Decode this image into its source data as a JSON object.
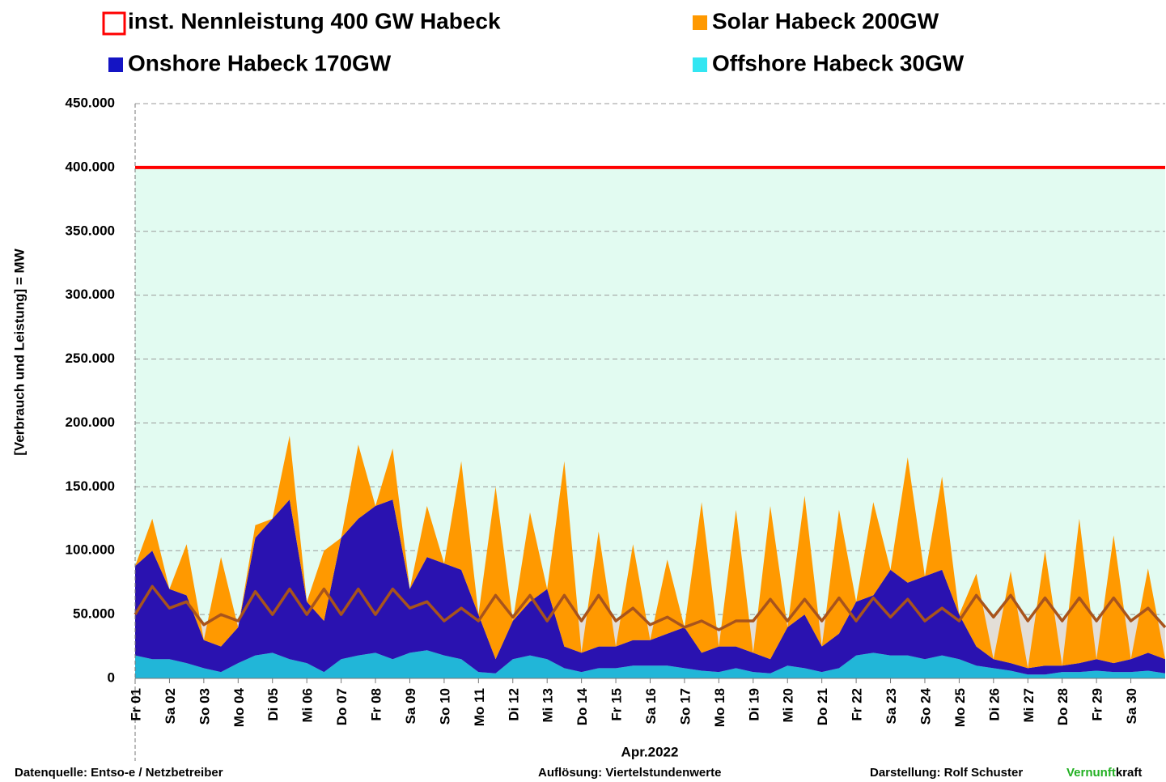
{
  "chart_data": {
    "type": "stacked-area",
    "capacity": {
      "name": "inst. Nennleistung 400 GW Habeck",
      "value": 400000,
      "color": "#ff0000",
      "fill": "#e2fbf1"
    },
    "y_label": "[Verbrauch und Leistung] = MW",
    "x_label": "Apr.2022",
    "categories": [
      "Fr 01",
      null,
      "Sa 02",
      null,
      "So 03",
      null,
      "Mo 04",
      null,
      "Di 05",
      null,
      "Mi 06",
      null,
      "Do 07",
      null,
      "Fr 08",
      null,
      "Sa 09",
      null,
      "So 10",
      null,
      "Mo 11",
      null,
      "Di 12",
      null,
      "Mi 13",
      null,
      "Do 14",
      null,
      "Fr 15",
      null,
      "Sa 16",
      null,
      "So 17",
      null,
      "Mo 18",
      null,
      "Di 19",
      null,
      "Mi 20",
      null,
      "Do 21",
      null,
      "Fr 22",
      null,
      "Sa 23",
      null,
      "So 24",
      null,
      "Mo 25",
      null,
      "Di 26",
      null,
      "Mi 27",
      null,
      "Do 28",
      null,
      "Fr 29",
      null,
      "Sa 30",
      null,
      null
    ],
    "series": [
      {
        "name": "Offshore Habeck 30GW",
        "color": "#21b6d8",
        "legend_color": "#33e6f2",
        "values": [
          18000,
          15000,
          15000,
          12000,
          8000,
          5000,
          12000,
          18000,
          20000,
          15000,
          12000,
          5000,
          15000,
          18000,
          20000,
          15000,
          20000,
          22000,
          18000,
          15000,
          5000,
          4000,
          15000,
          18000,
          15000,
          8000,
          5000,
          8000,
          8000,
          10000,
          10000,
          10000,
          8000,
          6000,
          5000,
          8000,
          5000,
          4000,
          10000,
          8000,
          5000,
          8000,
          18000,
          20000,
          18000,
          18000,
          15000,
          18000,
          15000,
          10000,
          8000,
          6000,
          3000,
          3000,
          5000,
          5000,
          6000,
          5000,
          5000,
          6000,
          4000
        ]
      },
      {
        "name": "Onshore Habeck 170GW",
        "color": "#2a12b0",
        "legend_color": "#1414c4",
        "values": [
          70000,
          85000,
          55000,
          53000,
          22000,
          20000,
          28000,
          92000,
          105000,
          125000,
          48000,
          40000,
          95000,
          107000,
          115000,
          125000,
          50000,
          73000,
          72000,
          70000,
          45000,
          11000,
          30000,
          42000,
          55000,
          17000,
          15000,
          17000,
          17000,
          20000,
          20000,
          25000,
          32000,
          14000,
          20000,
          17000,
          15000,
          11000,
          30000,
          42000,
          20000,
          27000,
          42000,
          45000,
          67000,
          57000,
          65000,
          67000,
          35000,
          15000,
          7000,
          6000,
          5000,
          7000,
          5000,
          7000,
          9000,
          7000,
          10000,
          14000,
          11000
        ]
      },
      {
        "name": "Solar Habeck 200GW",
        "color": "#ff9900",
        "legend_color": "#ff9900",
        "values": [
          0,
          25000,
          0,
          40000,
          0,
          70000,
          0,
          10000,
          0,
          50000,
          0,
          55000,
          0,
          58000,
          0,
          40000,
          0,
          40000,
          0,
          85000,
          0,
          135000,
          0,
          70000,
          0,
          145000,
          0,
          90000,
          0,
          75000,
          0,
          58000,
          0,
          118000,
          0,
          107000,
          0,
          120000,
          0,
          93000,
          0,
          97000,
          0,
          73000,
          0,
          98000,
          0,
          73000,
          0,
          57000,
          0,
          72000,
          0,
          90000,
          0,
          113000,
          0,
          100000,
          0,
          66000,
          0
        ]
      },
      {
        "color": "#a8541c",
        "fill": "#e3ded7",
        "values": [
          50000,
          72000,
          55000,
          60000,
          42000,
          50000,
          45000,
          68000,
          50000,
          70000,
          50000,
          70000,
          50000,
          70000,
          50000,
          70000,
          55000,
          60000,
          45000,
          55000,
          45000,
          65000,
          48000,
          65000,
          45000,
          65000,
          45000,
          65000,
          45000,
          55000,
          42000,
          48000,
          40000,
          45000,
          38000,
          45000,
          45000,
          62000,
          45000,
          62000,
          45000,
          63000,
          45000,
          63000,
          48000,
          62000,
          45000,
          55000,
          45000,
          65000,
          48000,
          65000,
          45000,
          63000,
          45000,
          63000,
          45000,
          63000,
          45000,
          55000,
          40000
        ]
      }
    ],
    "ylim": [
      0,
      450000
    ],
    "yticks": [
      0,
      {
        "value": 50000,
        "label": "50.000"
      },
      {
        "value": 100000,
        "label": "100.000"
      },
      {
        "value": 150000,
        "label": "150.000"
      },
      {
        "value": 200000,
        "label": "200.000"
      },
      {
        "value": 250000,
        "label": "250.000"
      },
      {
        "value": 300000,
        "label": "300.000"
      },
      {
        "value": 350000,
        "label": "350.000"
      },
      {
        "value": 400000,
        "label": "400.000"
      },
      {
        "value": 450000,
        "label": "450.000"
      }
    ],
    "grid": true
  },
  "footer": {
    "source": "Datenquelle: Entso-e  / Netzbetreiber",
    "resolution": "Auflösung: Viertelstundenwerte",
    "author": "Darstellung:  Rolf Schuster",
    "brand_green": "Vernunft",
    "brand_black": "kraft"
  }
}
